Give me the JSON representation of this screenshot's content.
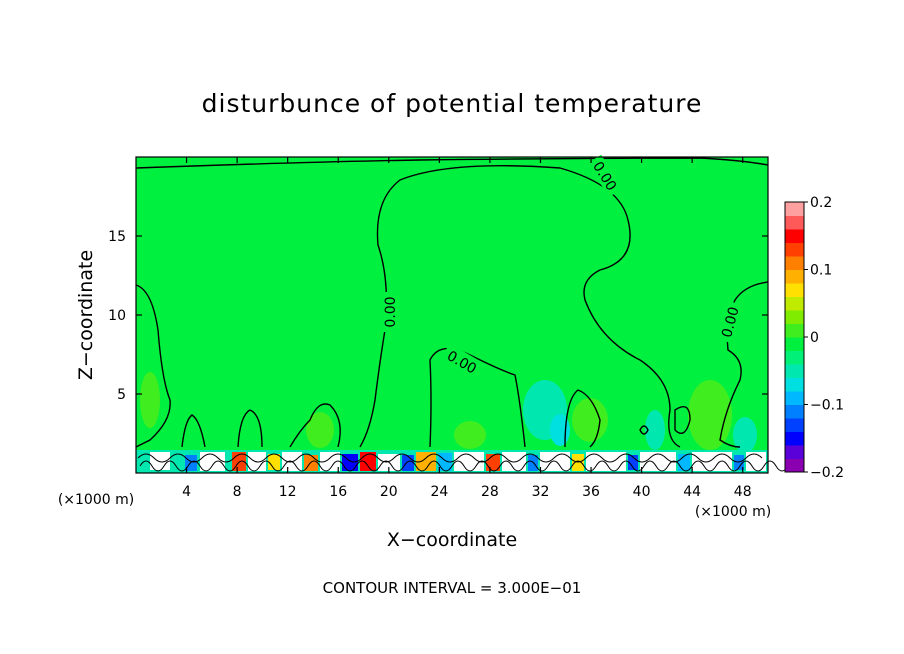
{
  "chart_data": {
    "type": "heatmap",
    "title": "disturbunce of potential temperature",
    "xlabel": "X−coordinate",
    "ylabel": "Z−coordinate",
    "x_unit_left": "(×1000 m)",
    "x_unit_right": "(×1000 m)",
    "footer": "CONTOUR INTERVAL = 3.000E−01",
    "xlim": [
      0,
      50
    ],
    "ylim": [
      0,
      20
    ],
    "xticks": [
      4,
      8,
      12,
      16,
      20,
      24,
      28,
      32,
      36,
      40,
      44,
      48
    ],
    "yticks": [
      5,
      10,
      15
    ],
    "colorbar": {
      "min": -0.2,
      "max": 0.2,
      "tick_labels": [
        "0.2",
        "0.1",
        "0",
        "−0.1",
        "−0.2"
      ],
      "tick_values": [
        0.2,
        0.1,
        0,
        -0.1,
        -0.2
      ],
      "colors": [
        "#8a00b0",
        "#5a00d8",
        "#0000ff",
        "#0040ff",
        "#0080ff",
        "#00b8ff",
        "#00e0e0",
        "#00e8b0",
        "#00f078",
        "#00f040",
        "#40ee20",
        "#80ec00",
        "#c0ea00",
        "#ffe000",
        "#ffb000",
        "#ff8000",
        "#ff4000",
        "#ff0000",
        "#ff5a5a",
        "#ffa0a0"
      ]
    },
    "background_value": 0,
    "background_color": "#00f040",
    "contour_labels": [
      "0.00",
      "0.00",
      "0.00",
      "0.00"
    ],
    "contour_level": 0.0,
    "contour_interval": 0.3
  }
}
